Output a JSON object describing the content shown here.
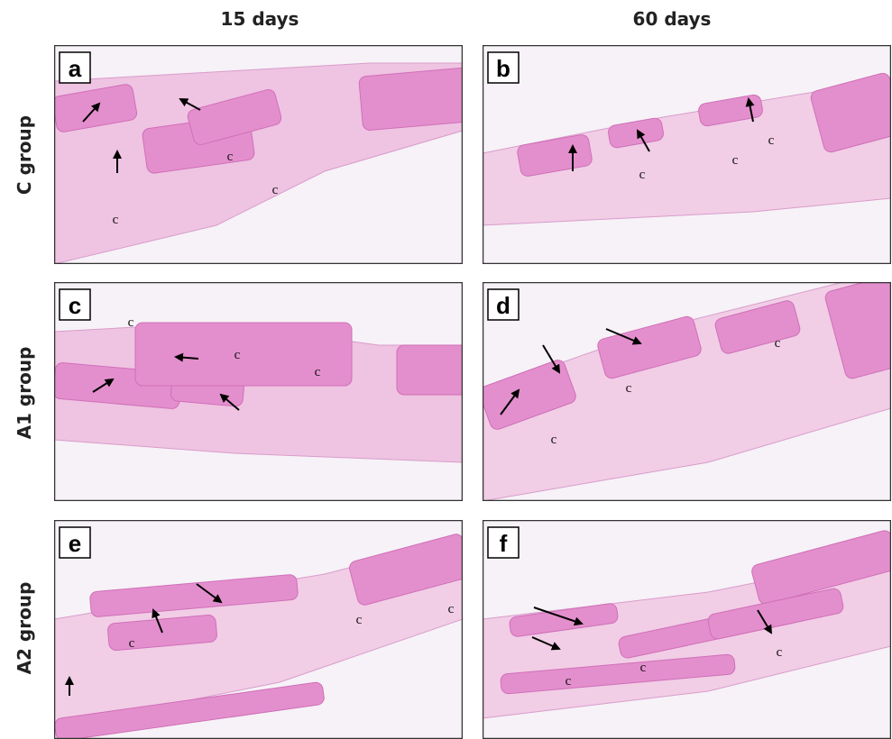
{
  "column_headers": [
    "15 days",
    "60 days"
  ],
  "row_labels": [
    "C group",
    "A1 group",
    "A2 group"
  ],
  "panels": [
    {
      "label": "a",
      "annotations": [
        "c",
        "c",
        "c"
      ]
    },
    {
      "label": "b",
      "annotations": [
        "c",
        "c",
        "c"
      ]
    },
    {
      "label": "c",
      "annotations": [
        "c",
        "c",
        "c"
      ]
    },
    {
      "label": "d",
      "annotations": [
        "c",
        "c",
        "c"
      ]
    },
    {
      "label": "e",
      "annotations": [
        "c",
        "c",
        "c"
      ]
    },
    {
      "label": "f",
      "annotations": [
        "c",
        "c",
        "c"
      ]
    }
  ]
}
